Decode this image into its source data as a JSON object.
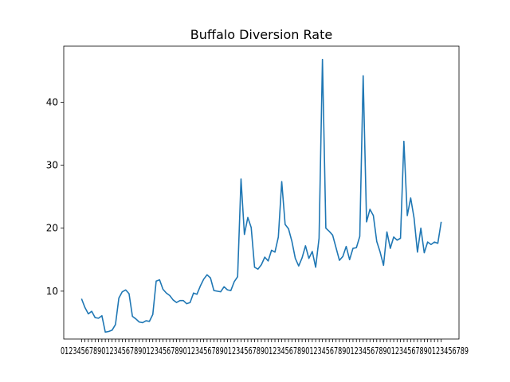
{
  "chart_data": {
    "type": "line",
    "title": "Buffalo Diversion Rate",
    "xlabel": "",
    "ylabel": "",
    "ylim": [
      2.4,
      48.9
    ],
    "yticks": [
      10,
      20,
      30,
      40
    ],
    "x_tick_labels_note": "dense overlapping labels",
    "grid": false,
    "legend": "none",
    "colors": {
      "line": "#1f77b4",
      "axes": "#000000"
    },
    "series": [
      {
        "values": [
          8.8,
          7.4,
          6.4,
          6.8,
          5.8,
          5.7,
          6.1,
          3.5,
          3.6,
          3.8,
          4.7,
          8.9,
          9.9,
          10.2,
          9.6,
          6.0,
          5.6,
          5.1,
          5.0,
          5.3,
          5.2,
          6.3,
          11.6,
          11.8,
          10.3,
          9.7,
          9.3,
          8.6,
          8.2,
          8.5,
          8.5,
          8.0,
          8.2,
          9.7,
          9.5,
          10.8,
          11.9,
          12.6,
          12.1,
          10.1,
          10.0,
          9.9,
          10.7,
          10.2,
          10.1,
          11.5,
          12.3,
          27.8,
          19.0,
          21.7,
          20.1,
          13.8,
          13.5,
          14.2,
          15.4,
          14.8,
          16.5,
          16.2,
          18.6,
          27.4,
          20.6,
          19.9,
          17.9,
          15.2,
          14.0,
          15.3,
          17.2,
          15.2,
          16.3,
          13.8,
          18.4,
          46.8,
          20.0,
          19.5,
          18.9,
          16.9,
          14.9,
          15.5,
          17.1,
          15.0,
          16.8,
          16.9,
          18.7,
          44.2,
          21.0,
          23.0,
          22.0,
          17.9,
          16.2,
          14.1,
          19.4,
          16.8,
          18.6,
          18.1,
          18.4,
          33.8,
          22.0,
          24.8,
          21.6,
          16.2,
          20.0,
          16.1,
          17.8,
          17.4,
          17.8,
          17.6,
          21.0
        ]
      }
    ]
  }
}
